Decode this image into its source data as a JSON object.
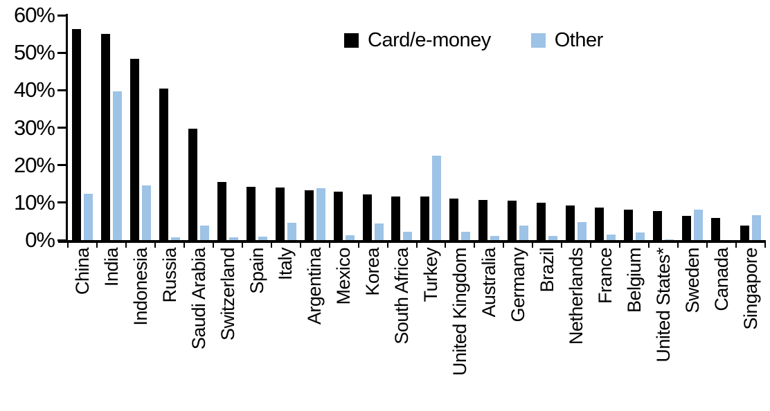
{
  "chart_data": {
    "type": "bar",
    "title": "",
    "xlabel": "",
    "ylabel": "",
    "ylim": [
      0,
      60
    ],
    "ytick_interval": 10,
    "ytick_labels": [
      "0%",
      "10%",
      "20%",
      "30%",
      "40%",
      "50%",
      "60%"
    ],
    "grid": false,
    "legend_position": "top-center",
    "categories": [
      "China",
      "India",
      "Indonesia",
      "Russia",
      "Saudi Arabia",
      "Switzerland",
      "Spain",
      "Italy",
      "Argentina",
      "Mexico",
      "Korea",
      "South Africa",
      "Turkey",
      "United Kingdom",
      "Australia",
      "Germany",
      "Brazil",
      "Netherlands",
      "France",
      "Belgium",
      "United States*",
      "Sweden",
      "Canada",
      "Singapore"
    ],
    "series": [
      {
        "name": "Card/e-money",
        "color": "#000000",
        "values": [
          56.4,
          55.1,
          48.3,
          40.5,
          29.8,
          15.6,
          14.2,
          14.1,
          13.3,
          12.9,
          12.2,
          11.7,
          11.6,
          11.1,
          10.8,
          10.6,
          9.9,
          9.3,
          8.6,
          8.1,
          7.8,
          6.5,
          6.0,
          3.9
        ]
      },
      {
        "name": "Other",
        "color": "#9DC3E6",
        "values": [
          12.3,
          39.7,
          14.5,
          0.8,
          3.8,
          0.7,
          0.9,
          4.6,
          13.9,
          1.3,
          4.5,
          2.3,
          22.6,
          2.3,
          1.1,
          3.9,
          1.1,
          4.8,
          1.4,
          2.0,
          0.2,
          8.1,
          0,
          6.7
        ]
      }
    ]
  },
  "legend": {
    "items": [
      {
        "label": "Card/e-money"
      },
      {
        "label": "Other"
      }
    ]
  }
}
